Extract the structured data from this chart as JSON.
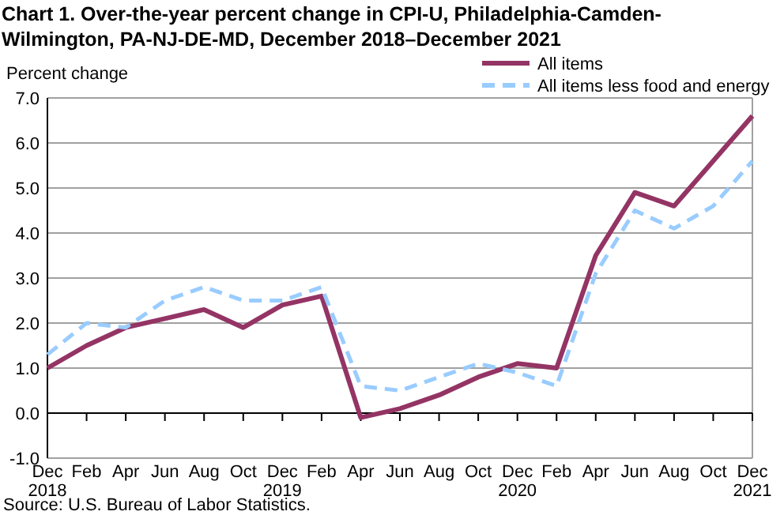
{
  "chart_data": {
    "type": "line",
    "title": "Chart 1. Over-the-year percent change in CPI-U, Philadelphia-Camden-\nWilmington, PA-NJ-DE-MD,  December 2018–December 2021",
    "ylabel": "Percent change",
    "categories": [
      "Dec\n2018",
      "Feb",
      "Apr",
      "Jun",
      "Aug",
      "Oct",
      "Dec\n2019",
      "Feb",
      "Apr",
      "Jun",
      "Aug",
      "Oct",
      "Dec\n2020",
      "Feb",
      "Apr",
      "Jun",
      "Aug",
      "Oct",
      "Dec\n2021"
    ],
    "series": [
      {
        "name": "All items",
        "color": "#943464",
        "line_style": "solid",
        "values": [
          1.0,
          1.5,
          1.9,
          2.1,
          2.3,
          1.9,
          2.4,
          2.6,
          -0.1,
          0.1,
          0.4,
          0.8,
          1.1,
          1.0,
          3.5,
          4.9,
          4.6,
          5.6,
          6.6
        ]
      },
      {
        "name": "All items less food and energy",
        "color": "#99ccff",
        "line_style": "dashed",
        "values": [
          1.3,
          2.0,
          1.9,
          2.5,
          2.8,
          2.5,
          2.5,
          2.8,
          0.6,
          0.5,
          0.8,
          1.1,
          0.9,
          0.6,
          3.1,
          4.5,
          4.1,
          4.6,
          5.6
        ]
      }
    ],
    "ylim": [
      -1,
      7
    ],
    "yticks": [
      {
        "value": -1,
        "label": "-1.0"
      },
      {
        "value": 0,
        "label": "0.0"
      },
      {
        "value": 1,
        "label": "1.0"
      },
      {
        "value": 2,
        "label": "2.0"
      },
      {
        "value": 3,
        "label": "3.0"
      },
      {
        "value": 4,
        "label": "4.0"
      },
      {
        "value": 5,
        "label": "5.0"
      },
      {
        "value": 6,
        "label": "6.0"
      },
      {
        "value": 7,
        "label": "7.0"
      }
    ],
    "grid": "y",
    "legend": "top right",
    "marker": "none",
    "annotations": [
      "Source: U.S. Bureau of Labor Statistics."
    ]
  }
}
